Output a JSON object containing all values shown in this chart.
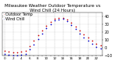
{
  "title": "Milwaukee Weather Outdoor Temperature vs Wind Chill (24 Hours)",
  "title_fontsize": 4.0,
  "background_color": "#ffffff",
  "grid_color": "#888888",
  "ylim": [
    -10,
    45
  ],
  "ytick_values": [
    40,
    30,
    20,
    10,
    0,
    -10
  ],
  "ytick_fontsize": 3.5,
  "xtick_fontsize": 3.0,
  "hours": [
    0,
    1,
    2,
    3,
    4,
    5,
    6,
    7,
    8,
    9,
    10,
    11,
    12,
    13,
    14,
    15,
    16,
    17,
    18,
    19,
    20,
    21,
    22,
    23
  ],
  "xtick_labels": [
    "0",
    "",
    "2",
    "",
    "4",
    "",
    "6",
    "",
    "8",
    "",
    "10",
    "",
    "12",
    "",
    "14",
    "",
    "16",
    "",
    "18",
    "",
    "20",
    "",
    "22",
    ""
  ],
  "temp": [
    -4,
    -5,
    -6,
    -6,
    -5,
    -4,
    2,
    9,
    16,
    22,
    28,
    33,
    37,
    38,
    38,
    36,
    32,
    27,
    22,
    17,
    13,
    9,
    5,
    3
  ],
  "wind_chill": [
    -8,
    -9,
    -10,
    -10,
    -9,
    -8,
    -2,
    4,
    11,
    18,
    25,
    30,
    35,
    36,
    37,
    34,
    29,
    24,
    18,
    13,
    9,
    5,
    1,
    -1
  ],
  "temp_color": "#cc0000",
  "wind_chill_color": "#0000cc",
  "marker_size": 1.5,
  "legend_labels": [
    "Outdoor Temp",
    "Wind Chill"
  ],
  "legend_fontsize": 3.5,
  "vgrid_every": 2
}
